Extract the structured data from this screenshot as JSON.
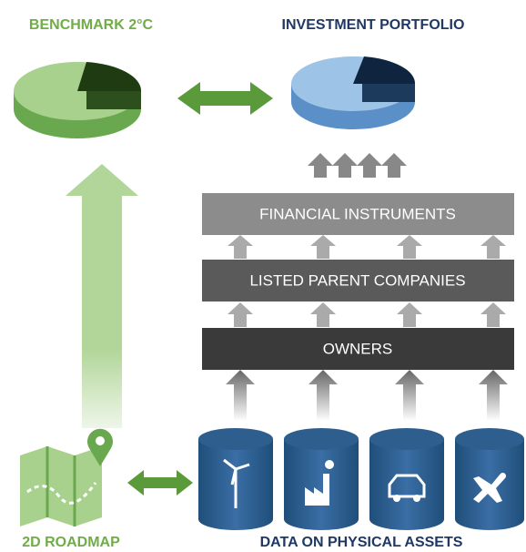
{
  "header": {
    "benchmark": "BENCHMARK 2°C",
    "portfolio": "INVESTMENT PORTFOLIO"
  },
  "layers": [
    "FINANCIAL INSTRUMENTS",
    "LISTED PARENT COMPANIES",
    "OWNERS"
  ],
  "footer": {
    "roadmap": "2D ROADMAP",
    "assets": "DATA ON PHYSICAL ASSETS"
  }
}
